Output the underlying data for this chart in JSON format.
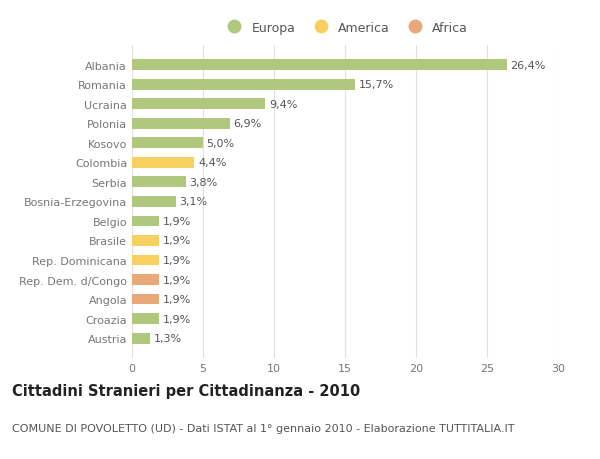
{
  "categories": [
    "Albania",
    "Romania",
    "Ucraina",
    "Polonia",
    "Kosovo",
    "Colombia",
    "Serbia",
    "Bosnia-Erzegovina",
    "Belgio",
    "Brasile",
    "Rep. Dominicana",
    "Rep. Dem. d/Congo",
    "Angola",
    "Croazia",
    "Austria"
  ],
  "values": [
    26.4,
    15.7,
    9.4,
    6.9,
    5.0,
    4.4,
    3.8,
    3.1,
    1.9,
    1.9,
    1.9,
    1.9,
    1.9,
    1.9,
    1.3
  ],
  "labels": [
    "26,4%",
    "15,7%",
    "9,4%",
    "6,9%",
    "5,0%",
    "4,4%",
    "3,8%",
    "3,1%",
    "1,9%",
    "1,9%",
    "1,9%",
    "1,9%",
    "1,9%",
    "1,9%",
    "1,3%"
  ],
  "continents": [
    "Europa",
    "Europa",
    "Europa",
    "Europa",
    "Europa",
    "America",
    "Europa",
    "Europa",
    "Europa",
    "America",
    "America",
    "Africa",
    "Africa",
    "Europa",
    "Europa"
  ],
  "colors": {
    "Europa": "#afc87e",
    "America": "#f8d060",
    "Africa": "#e8a878"
  },
  "xlim": [
    0,
    30
  ],
  "xticks": [
    0,
    5,
    10,
    15,
    20,
    25,
    30
  ],
  "title": "Cittadini Stranieri per Cittadinanza - 2010",
  "subtitle": "COMUNE DI POVOLETTO (UD) - Dati ISTAT al 1° gennaio 2010 - Elaborazione TUTTITALIA.IT",
  "background_color": "#ffffff",
  "grid_color": "#e0e0e0",
  "bar_height": 0.55,
  "title_fontsize": 10.5,
  "subtitle_fontsize": 8,
  "label_fontsize": 8,
  "tick_fontsize": 8,
  "legend_fontsize": 9
}
